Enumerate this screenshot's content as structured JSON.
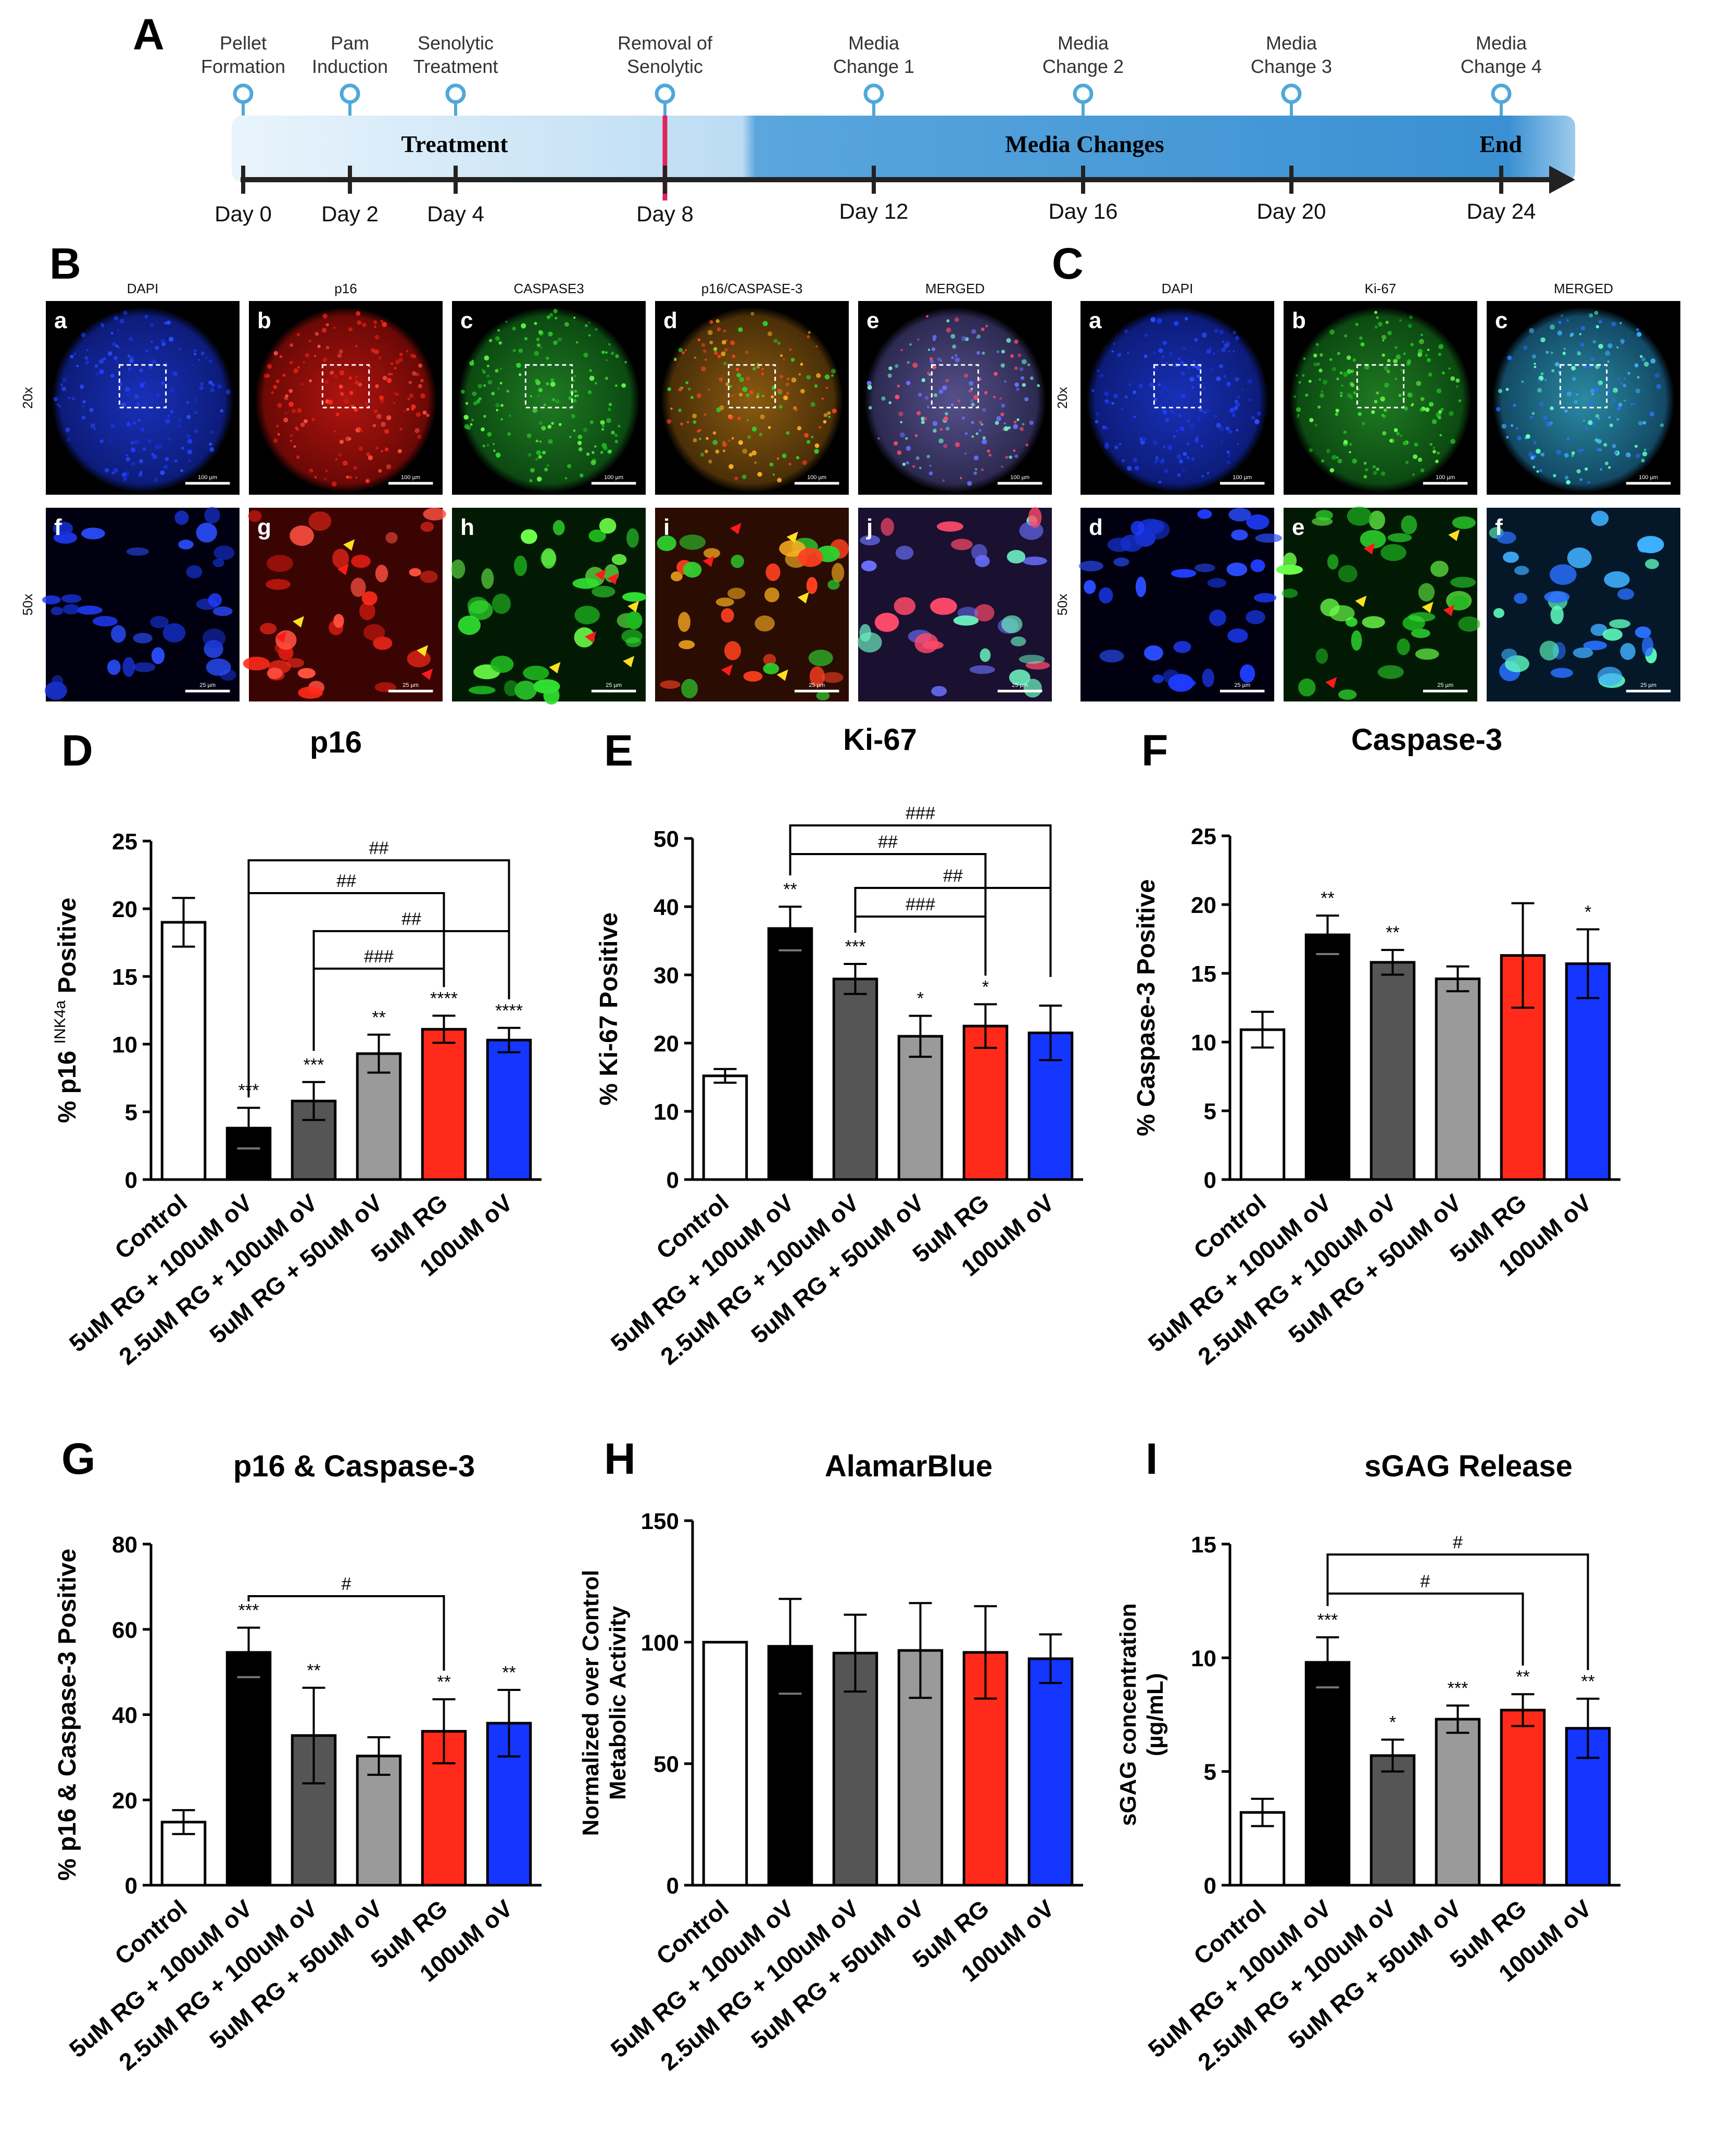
{
  "panel_letters": [
    "A",
    "B",
    "C",
    "D",
    "E",
    "F",
    "G",
    "H",
    "I"
  ],
  "timeline": {
    "events_top": [
      "Pellet Formation",
      "Pam Induction",
      "Senolytic Treatment",
      "Removal of Senolytic",
      "Media Change 1",
      "Media Change 2",
      "Media Change 3",
      "Media Change 4"
    ],
    "days": [
      "Day 0",
      "Day 2",
      "Day 4",
      "Day 8",
      "Day 12",
      "Day 16",
      "Day 20",
      "Day 24"
    ],
    "bands": [
      "Treatment",
      "Media Changes",
      "End"
    ],
    "colors": {
      "treatment_band": "#cfe5f7",
      "media_band": "#3f96d6",
      "divider": "#e0245e",
      "pin": "#4fa8d8"
    }
  },
  "panel_B": {
    "columns": [
      "DAPI",
      "p16",
      "CASPASE3",
      "p16/CASPASE-3",
      "MERGED"
    ],
    "top_letters": [
      "a",
      "b",
      "c",
      "d",
      "e"
    ],
    "bottom_letters": [
      "f",
      "g",
      "h",
      "i",
      "j"
    ],
    "row_labels": [
      "20x",
      "50x"
    ],
    "scale_top": "100 µm",
    "scale_bottom": "25 µm"
  },
  "panel_C": {
    "columns": [
      "DAPI",
      "Ki-67",
      "MERGED"
    ],
    "top_letters": [
      "a",
      "b",
      "c"
    ],
    "bottom_letters": [
      "d",
      "e",
      "f"
    ],
    "row_labels": [
      "20x",
      "50x"
    ],
    "scale_top": "100 µm",
    "scale_bottom": "25 µm"
  },
  "series_colors": [
    "#ffffff",
    "#000000",
    "#555555",
    "#9a9a9a",
    "#ff2a1a",
    "#1436ff"
  ],
  "chart_data": [
    {
      "panel": "D",
      "type": "bar",
      "title": "p16",
      "ylabel": "% p16 INK4a Positive",
      "ylim": [
        0,
        25
      ],
      "yticks": [
        0,
        5,
        10,
        15,
        20,
        25
      ],
      "categories": [
        "Control",
        "5uM RG + 100uM oV",
        "2.5uM RG + 100uM oV",
        "5uM RG + 50uM oV",
        "5uM RG",
        "100uM oV"
      ],
      "values": [
        19.0,
        3.8,
        5.8,
        9.3,
        11.1,
        10.3
      ],
      "errors": [
        1.8,
        1.5,
        1.4,
        1.4,
        1.0,
        0.9
      ],
      "stars": [
        "",
        "***",
        "***",
        "**",
        "****",
        "****"
      ],
      "brackets": [
        {
          "from": 1,
          "to": 5,
          "label": "##"
        },
        {
          "from": 1,
          "to": 4,
          "label": "##"
        },
        {
          "from": 2,
          "to": 5,
          "label": "##"
        },
        {
          "from": 2,
          "to": 4,
          "label": "###"
        }
      ]
    },
    {
      "panel": "E",
      "type": "bar",
      "title": "Ki-67",
      "ylabel": "% Ki-67 Positive",
      "ylim": [
        0,
        50
      ],
      "yticks": [
        0,
        10,
        20,
        30,
        40,
        50
      ],
      "categories": [
        "Control",
        "5uM RG + 100uM oV",
        "2.5uM RG + 100uM oV",
        "5uM RG + 50uM oV",
        "5uM RG",
        "100uM oV"
      ],
      "values": [
        15.2,
        36.8,
        29.4,
        21.0,
        22.5,
        21.5
      ],
      "errors": [
        1.0,
        3.2,
        2.2,
        3.0,
        3.2,
        4.0
      ],
      "stars": [
        "",
        "**",
        "***",
        "*",
        "*",
        ""
      ],
      "brackets": [
        {
          "from": 1,
          "to": 5,
          "label": "###"
        },
        {
          "from": 1,
          "to": 4,
          "label": "##"
        },
        {
          "from": 2,
          "to": 5,
          "label": "##"
        },
        {
          "from": 2,
          "to": 4,
          "label": "###"
        }
      ]
    },
    {
      "panel": "F",
      "type": "bar",
      "title": "Caspase-3",
      "ylabel": "% Caspase-3 Positive",
      "ylim": [
        0,
        25
      ],
      "yticks": [
        0,
        5,
        10,
        15,
        20,
        25
      ],
      "categories": [
        "Control",
        "5uM RG + 100uM oV",
        "2.5uM RG + 100uM oV",
        "5uM RG + 50uM oV",
        "5uM RG",
        "100uM oV"
      ],
      "values": [
        10.9,
        17.8,
        15.8,
        14.6,
        16.3,
        15.7
      ],
      "errors": [
        1.3,
        1.4,
        0.9,
        0.9,
        3.8,
        2.5
      ],
      "stars": [
        "",
        "**",
        "**",
        "",
        "",
        "*"
      ],
      "brackets": []
    },
    {
      "panel": "G",
      "type": "bar",
      "title": "p16 & Caspase-3",
      "ylabel": "% p16 & Caspase-3 Positive",
      "ylim": [
        0,
        80
      ],
      "yticks": [
        0,
        20,
        40,
        60,
        80
      ],
      "categories": [
        "Control",
        "5uM RG + 100uM oV",
        "2.5uM RG + 100uM oV",
        "5uM RG + 50uM oV",
        "5uM RG",
        "100uM oV"
      ],
      "values": [
        14.8,
        54.6,
        35.1,
        30.3,
        36.1,
        38.0
      ],
      "errors": [
        2.8,
        5.8,
        11.2,
        4.4,
        7.5,
        7.8
      ],
      "stars": [
        "",
        "***",
        "**",
        "",
        "**",
        "**"
      ],
      "brackets": [
        {
          "from": 1,
          "to": 4,
          "label": "#"
        }
      ]
    },
    {
      "panel": "H",
      "type": "bar",
      "title": "AlamarBlue",
      "ylabel": "Normalized over Control Metabolic Activity",
      "ylim": [
        0,
        150
      ],
      "yticks": [
        0,
        50,
        100,
        150
      ],
      "categories": [
        "Control",
        "5uM RG + 100uM oV",
        "2.5uM RG + 100uM oV",
        "5uM RG + 50uM oV",
        "5uM RG",
        "100uM oV"
      ],
      "values": [
        100,
        98.3,
        95.5,
        96.6,
        95.8,
        93.2
      ],
      "errors": [
        0,
        19.5,
        15.8,
        19.5,
        19.0,
        10.0
      ],
      "stars": [
        "",
        "",
        "",
        "",
        "",
        ""
      ],
      "brackets": []
    },
    {
      "panel": "I",
      "type": "bar",
      "title": "sGAG Release",
      "ylabel": "sGAG concentration (µg/mL)",
      "ylim": [
        0,
        15
      ],
      "yticks": [
        0,
        5,
        10,
        15
      ],
      "categories": [
        "Control",
        "5uM RG + 100uM oV",
        "2.5uM RG + 100uM oV",
        "5uM RG + 50uM oV",
        "5uM RG",
        "100uM oV"
      ],
      "values": [
        3.2,
        9.8,
        5.7,
        7.3,
        7.7,
        6.9
      ],
      "errors": [
        0.6,
        1.1,
        0.7,
        0.6,
        0.7,
        1.3
      ],
      "stars": [
        "",
        "***",
        "*",
        "***",
        "**",
        "**"
      ],
      "brackets": [
        {
          "from": 1,
          "to": 5,
          "label": "#"
        },
        {
          "from": 1,
          "to": 4,
          "label": "#"
        }
      ]
    }
  ]
}
